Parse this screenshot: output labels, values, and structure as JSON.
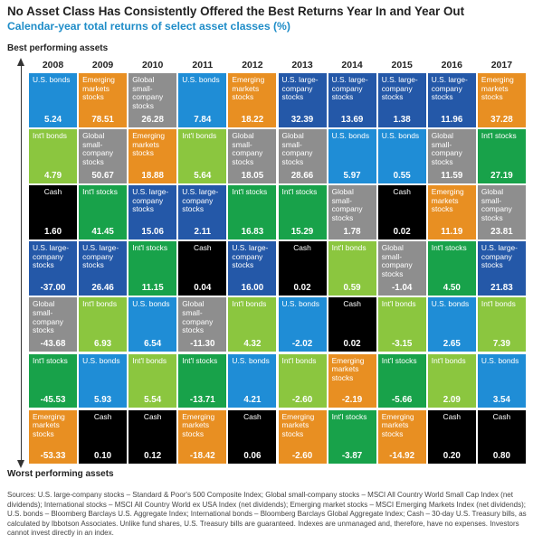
{
  "title": "No Asset Class Has Consistently Offered the Best Returns Year In and Year Out",
  "subtitle": "Calendar-year total returns of select asset classes (%)",
  "best_label": "Best performing assets",
  "worst_label": "Worst performing assets",
  "sources": "Sources: U.S. large-company stocks – Standard & Poor's 500 Composite Index; Global small-company stocks – MSCI All Country World Small Cap Index (net dividends); International stocks – MSCI All Country World ex USA Index (net dividends); Emerging market stocks – MSCI Emerging Markets Index (net dividends); U.S. bonds – Bloomberg Barclays U.S. Aggregate Index; International bonds – Bloomberg Barclays Global Aggregate Index; Cash – 30-day U.S. Treasury bills, as calculated by Ibbotson Associates. Unlike fund shares, U.S. Treasury bills are guaranteed. Indexes are unmanaged and, therefore, have no expenses. Investors cannot invest directly in an index.",
  "colors": {
    "us_bonds": "#1f8dd6",
    "intl_bonds": "#8bc63f",
    "cash": "#000000",
    "us_large": "#2458a8",
    "global_small": "#8e8e8e",
    "intl_stocks": "#18a24a",
    "emerging": "#e88f22"
  },
  "chart_data": {
    "type": "table",
    "title": "No Asset Class Has Consistently Offered the Best Returns Year In and Year Out",
    "subtitle": "Calendar-year total returns of select asset classes (%)",
    "ylabel_top": "Best performing assets",
    "ylabel_bottom": "Worst performing assets",
    "years": [
      "2008",
      "2009",
      "2010",
      "2011",
      "2012",
      "2013",
      "2014",
      "2015",
      "2016",
      "2017"
    ],
    "asset_classes": {
      "us_bonds": "U.S. bonds",
      "intl_bonds": "Int'l bonds",
      "cash": "Cash",
      "us_large": "U.S. large-company stocks",
      "global_small": "Global small-company stocks",
      "intl_stocks": "Int'l stocks",
      "emerging": "Emerging markets stocks"
    },
    "columns": [
      [
        {
          "asset": "us_bonds",
          "label": "U.S. bonds",
          "value": "5.24"
        },
        {
          "asset": "intl_bonds",
          "label": "Int'l bonds",
          "value": "4.79"
        },
        {
          "asset": "cash",
          "label": "Cash",
          "value": "1.60"
        },
        {
          "asset": "us_large",
          "label": "U.S. large-company stocks",
          "value": "-37.00"
        },
        {
          "asset": "global_small",
          "label": "Global small-company stocks",
          "value": "-43.68"
        },
        {
          "asset": "intl_stocks",
          "label": "Int'l stocks",
          "value": "-45.53"
        },
        {
          "asset": "emerging",
          "label": "Emerging markets stocks",
          "value": "-53.33"
        }
      ],
      [
        {
          "asset": "emerging",
          "label": "Emerging markets stocks",
          "value": "78.51"
        },
        {
          "asset": "global_small",
          "label": "Global small-company stocks",
          "value": "50.67"
        },
        {
          "asset": "intl_stocks",
          "label": "Int'l stocks",
          "value": "41.45"
        },
        {
          "asset": "us_large",
          "label": "U.S. large-company stocks",
          "value": "26.46"
        },
        {
          "asset": "intl_bonds",
          "label": "Int'l bonds",
          "value": "6.93"
        },
        {
          "asset": "us_bonds",
          "label": "U.S. bonds",
          "value": "5.93"
        },
        {
          "asset": "cash",
          "label": "Cash",
          "value": "0.10"
        }
      ],
      [
        {
          "asset": "global_small",
          "label": "Global small-company stocks",
          "value": "26.28"
        },
        {
          "asset": "emerging",
          "label": "Emerging markets stocks",
          "value": "18.88"
        },
        {
          "asset": "us_large",
          "label": "U.S. large-company stocks",
          "value": "15.06"
        },
        {
          "asset": "intl_stocks",
          "label": "Int'l stocks",
          "value": "11.15"
        },
        {
          "asset": "us_bonds",
          "label": "U.S. bonds",
          "value": "6.54"
        },
        {
          "asset": "intl_bonds",
          "label": "Int'l bonds",
          "value": "5.54"
        },
        {
          "asset": "cash",
          "label": "Cash",
          "value": "0.12"
        }
      ],
      [
        {
          "asset": "us_bonds",
          "label": "U.S. bonds",
          "value": "7.84"
        },
        {
          "asset": "intl_bonds",
          "label": "Int'l bonds",
          "value": "5.64"
        },
        {
          "asset": "us_large",
          "label": "U.S. large-company stocks",
          "value": "2.11"
        },
        {
          "asset": "cash",
          "label": "Cash",
          "value": "0.04"
        },
        {
          "asset": "global_small",
          "label": "Global small-company stocks",
          "value": "-11.30"
        },
        {
          "asset": "intl_stocks",
          "label": "Int'l stocks",
          "value": "-13.71"
        },
        {
          "asset": "emerging",
          "label": "Emerging markets stocks",
          "value": "-18.42"
        }
      ],
      [
        {
          "asset": "emerging",
          "label": "Emerging markets stocks",
          "value": "18.22"
        },
        {
          "asset": "global_small",
          "label": "Global small-company stocks",
          "value": "18.05"
        },
        {
          "asset": "intl_stocks",
          "label": "Int'l stocks",
          "value": "16.83"
        },
        {
          "asset": "us_large",
          "label": "U.S. large-company stocks",
          "value": "16.00"
        },
        {
          "asset": "intl_bonds",
          "label": "Int'l bonds",
          "value": "4.32"
        },
        {
          "asset": "us_bonds",
          "label": "U.S. bonds",
          "value": "4.21"
        },
        {
          "asset": "cash",
          "label": "Cash",
          "value": "0.06"
        }
      ],
      [
        {
          "asset": "us_large",
          "label": "U.S. large-company stocks",
          "value": "32.39"
        },
        {
          "asset": "global_small",
          "label": "Global small-company stocks",
          "value": "28.66"
        },
        {
          "asset": "intl_stocks",
          "label": "Int'l stocks",
          "value": "15.29"
        },
        {
          "asset": "cash",
          "label": "Cash",
          "value": "0.02"
        },
        {
          "asset": "us_bonds",
          "label": "U.S. bonds",
          "value": "-2.02"
        },
        {
          "asset": "intl_bonds",
          "label": "Int'l bonds",
          "value": "-2.60"
        },
        {
          "asset": "emerging",
          "label": "Emerging markets stocks",
          "value": "-2.60"
        }
      ],
      [
        {
          "asset": "us_large",
          "label": "U.S. large-company stocks",
          "value": "13.69"
        },
        {
          "asset": "us_bonds",
          "label": "U.S. bonds",
          "value": "5.97"
        },
        {
          "asset": "global_small",
          "label": "Global small-company stocks",
          "value": "1.78"
        },
        {
          "asset": "intl_bonds",
          "label": "Int'l bonds",
          "value": "0.59"
        },
        {
          "asset": "cash",
          "label": "Cash",
          "value": "0.02"
        },
        {
          "asset": "emerging",
          "label": "Emerging markets stocks",
          "value": "-2.19"
        },
        {
          "asset": "intl_stocks",
          "label": "Int'l stocks",
          "value": "-3.87"
        }
      ],
      [
        {
          "asset": "us_large",
          "label": "U.S. large-company stocks",
          "value": "1.38"
        },
        {
          "asset": "us_bonds",
          "label": "U.S. bonds",
          "value": "0.55"
        },
        {
          "asset": "cash",
          "label": "Cash",
          "value": "0.02"
        },
        {
          "asset": "global_small",
          "label": "Global small-company stocks",
          "value": "-1.04"
        },
        {
          "asset": "intl_bonds",
          "label": "Int'l bonds",
          "value": "-3.15"
        },
        {
          "asset": "intl_stocks",
          "label": "Int'l stocks",
          "value": "-5.66"
        },
        {
          "asset": "emerging",
          "label": "Emerging markets stocks",
          "value": "-14.92"
        }
      ],
      [
        {
          "asset": "us_large",
          "label": "U.S. large-company stocks",
          "value": "11.96"
        },
        {
          "asset": "global_small",
          "label": "Global small-company stocks",
          "value": "11.59"
        },
        {
          "asset": "emerging",
          "label": "Emerging markets stocks",
          "value": "11.19"
        },
        {
          "asset": "intl_stocks",
          "label": "Int'l stocks",
          "value": "4.50"
        },
        {
          "asset": "us_bonds",
          "label": "U.S. bonds",
          "value": "2.65"
        },
        {
          "asset": "intl_bonds",
          "label": "Int'l bonds",
          "value": "2.09"
        },
        {
          "asset": "cash",
          "label": "Cash",
          "value": "0.20"
        }
      ],
      [
        {
          "asset": "emerging",
          "label": "Emerging markets stocks",
          "value": "37.28"
        },
        {
          "asset": "intl_stocks",
          "label": "Int'l stocks",
          "value": "27.19"
        },
        {
          "asset": "global_small",
          "label": "Global small-company stocks",
          "value": "23.81"
        },
        {
          "asset": "us_large",
          "label": "U.S. large-company stocks",
          "value": "21.83"
        },
        {
          "asset": "intl_bonds",
          "label": "Int'l bonds",
          "value": "7.39"
        },
        {
          "asset": "us_bonds",
          "label": "U.S. bonds",
          "value": "3.54"
        },
        {
          "asset": "cash",
          "label": "Cash",
          "value": "0.80"
        }
      ]
    ]
  }
}
